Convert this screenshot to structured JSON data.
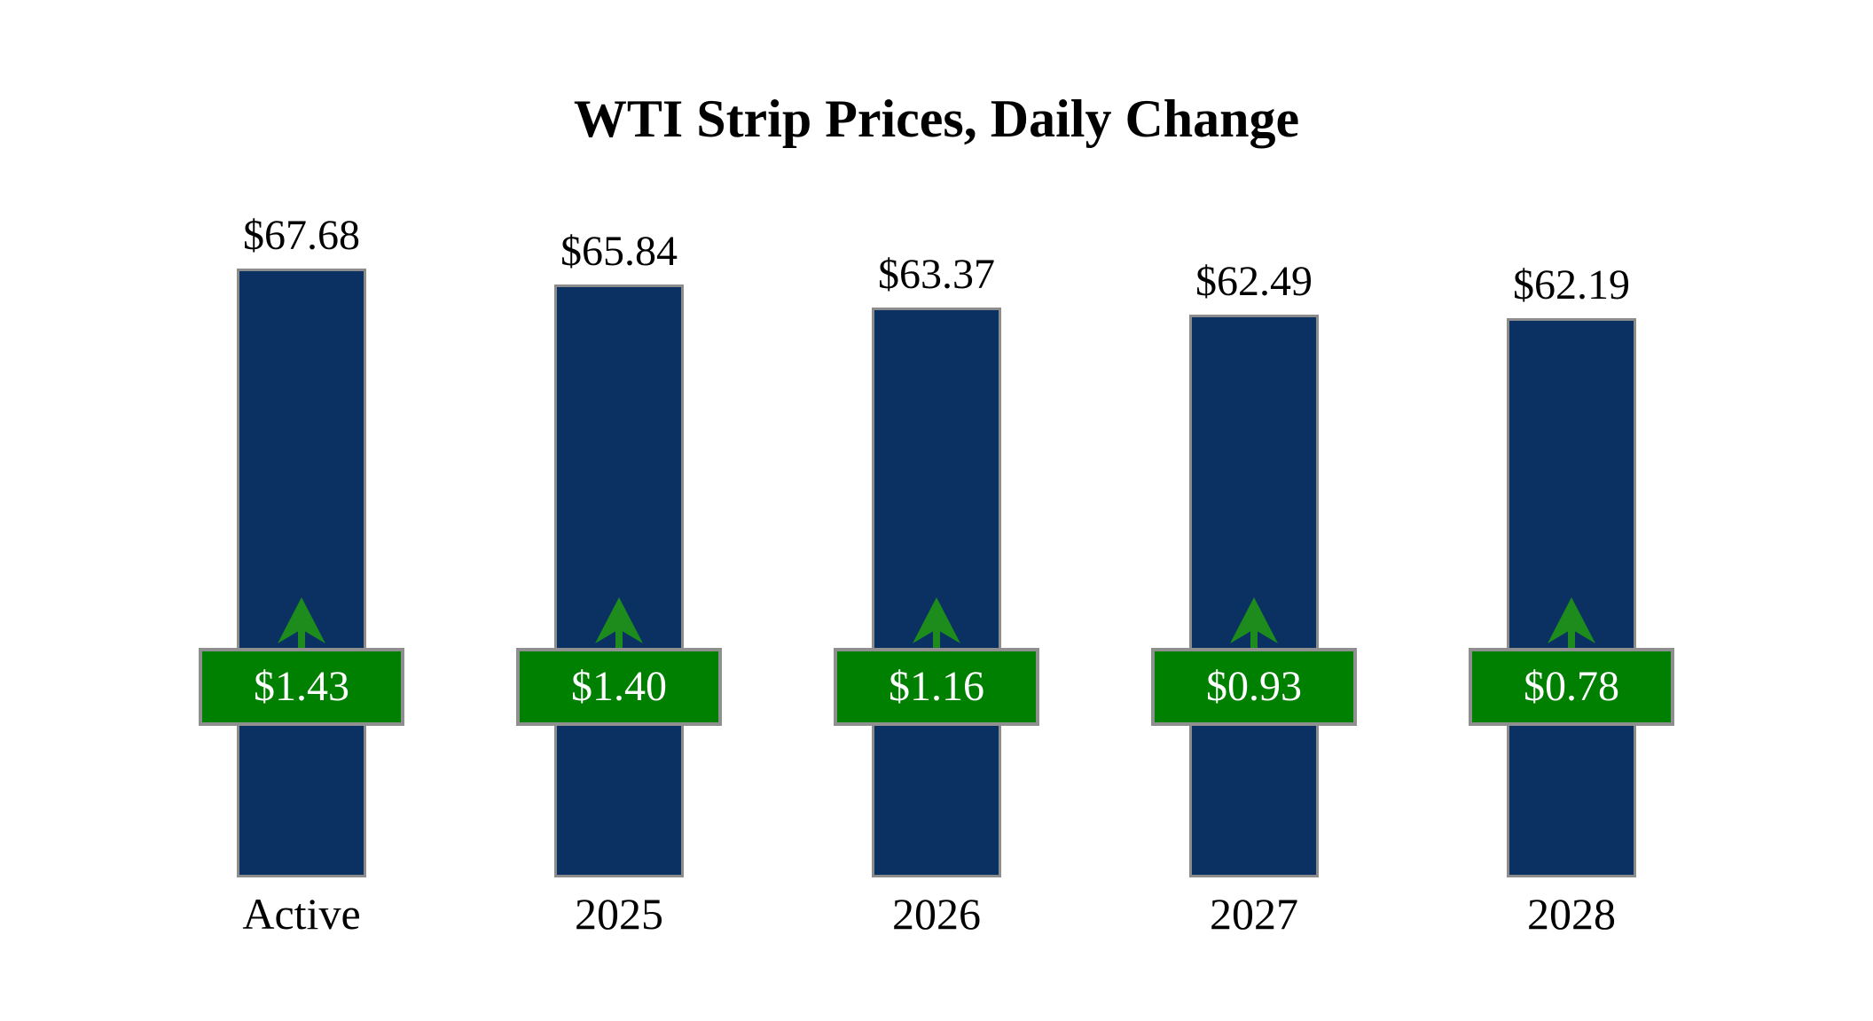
{
  "title": "WTI Strip Prices, Daily Change",
  "colors": {
    "bar_fill": "#0a3161",
    "bar_border": "#8c8c8c",
    "badge_fill": "#008000",
    "badge_border": "#8f8f8f",
    "badge_text": "#ffffff",
    "arrow_green": "#1d8c1d",
    "label_text": "#000000",
    "background": "#ffffff"
  },
  "icons": {
    "up_arrow": "up-arrow-icon"
  },
  "chart_data": {
    "type": "bar",
    "title": "WTI Strip Prices, Daily Change",
    "categories": [
      "Active",
      "2025",
      "2026",
      "2027",
      "2028"
    ],
    "series": [
      {
        "name": "Strip Price",
        "values": [
          67.68,
          65.84,
          63.37,
          62.49,
          62.19
        ],
        "labels": [
          "$67.68",
          "$65.84",
          "$63.37",
          "$62.49",
          "$62.19"
        ],
        "color": "#0a3161"
      },
      {
        "name": "Daily Change",
        "values": [
          1.43,
          1.4,
          1.16,
          0.93,
          0.78
        ],
        "labels": [
          "$1.43",
          "$1.40",
          "$1.16",
          "$0.93",
          "$0.78"
        ],
        "color": "#008000",
        "direction": "up"
      }
    ],
    "ylim": [
      0,
      68
    ],
    "xlabel": "",
    "ylabel": "",
    "grid": false,
    "legend": false,
    "axes_hidden": true,
    "annotation_style": "value labels above bars; daily change shown in green badge with upward arrow at fixed height on each bar"
  }
}
